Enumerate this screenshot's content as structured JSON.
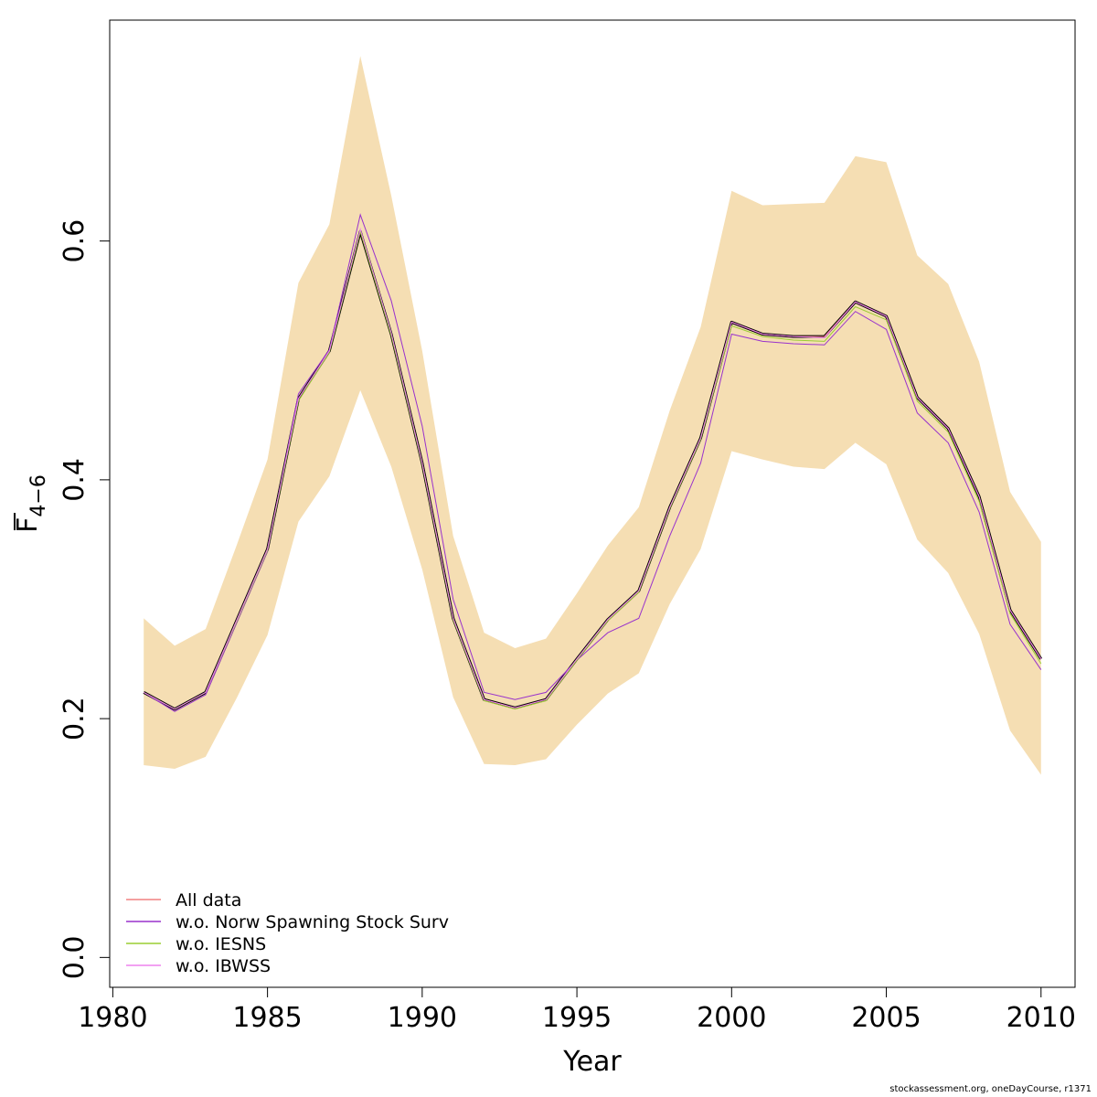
{
  "chart_data": {
    "type": "line",
    "xlabel": "Year",
    "ylabel": "F",
    "ylabel_subscript": "4−6",
    "x": [
      1981,
      1982,
      1983,
      1984,
      1985,
      1986,
      1987,
      1988,
      1989,
      1990,
      1991,
      1992,
      1993,
      1994,
      1995,
      1996,
      1997,
      1998,
      1999,
      2000,
      2001,
      2002,
      2003,
      2004,
      2005,
      2006,
      2007,
      2008,
      2009,
      2010
    ],
    "xlim": [
      1979.9,
      2011.1
    ],
    "ylim": [
      -0.025,
      0.785
    ],
    "xticks": [
      1980,
      1985,
      1990,
      1995,
      2000,
      2005,
      2010
    ],
    "xtick_labels": [
      "1980",
      "1985",
      "1990",
      "1995",
      "2000",
      "2005",
      "2010"
    ],
    "yticks": [
      0.0,
      0.2,
      0.4,
      0.6
    ],
    "ytick_labels": [
      "0.0",
      "0.2",
      "0.4",
      "0.6"
    ],
    "band": {
      "color": "#F5DEB3",
      "lower": [
        0.161,
        0.158,
        0.168,
        0.217,
        0.27,
        0.365,
        0.403,
        0.475,
        0.411,
        0.325,
        0.218,
        0.162,
        0.161,
        0.166,
        0.195,
        0.221,
        0.238,
        0.296,
        0.342,
        0.424,
        0.417,
        0.411,
        0.409,
        0.431,
        0.413,
        0.35,
        0.322,
        0.271,
        0.19,
        0.153
      ],
      "upper": [
        0.284,
        0.261,
        0.275,
        0.345,
        0.417,
        0.565,
        0.614,
        0.755,
        0.638,
        0.508,
        0.353,
        0.272,
        0.259,
        0.267,
        0.305,
        0.345,
        0.377,
        0.458,
        0.528,
        0.642,
        0.63,
        0.631,
        0.632,
        0.671,
        0.666,
        0.588,
        0.564,
        0.499,
        0.39,
        0.348
      ]
    },
    "main_line": {
      "color": "#000000",
      "values": [
        0.222,
        0.208,
        0.222,
        0.282,
        0.342,
        0.468,
        0.508,
        0.608,
        0.522,
        0.414,
        0.284,
        0.216,
        0.209,
        0.216,
        0.25,
        0.283,
        0.307,
        0.377,
        0.435,
        0.532,
        0.522,
        0.52,
        0.52,
        0.549,
        0.537,
        0.469,
        0.443,
        0.386,
        0.291,
        0.25
      ]
    },
    "series": [
      {
        "name": "All data",
        "color": "#F08080",
        "values": [
          0.222,
          0.208,
          0.222,
          0.282,
          0.342,
          0.468,
          0.508,
          0.608,
          0.522,
          0.414,
          0.284,
          0.216,
          0.209,
          0.216,
          0.25,
          0.283,
          0.307,
          0.377,
          0.435,
          0.532,
          0.522,
          0.52,
          0.52,
          0.549,
          0.537,
          0.469,
          0.443,
          0.386,
          0.291,
          0.25
        ]
      },
      {
        "name": "w.o. Norw Spawning Stock Surv",
        "color": "#9932CC",
        "values": [
          0.222,
          0.206,
          0.22,
          0.28,
          0.34,
          0.472,
          0.509,
          0.622,
          0.55,
          0.445,
          0.3,
          0.222,
          0.216,
          0.222,
          0.249,
          0.272,
          0.284,
          0.353,
          0.414,
          0.522,
          0.516,
          0.514,
          0.513,
          0.541,
          0.526,
          0.456,
          0.431,
          0.373,
          0.279,
          0.241
        ]
      },
      {
        "name": "w.o. IESNS",
        "color": "#9ACD32",
        "values": [
          0.222,
          0.208,
          0.222,
          0.281,
          0.341,
          0.466,
          0.507,
          0.608,
          0.521,
          0.413,
          0.283,
          0.215,
          0.208,
          0.215,
          0.249,
          0.282,
          0.306,
          0.376,
          0.434,
          0.529,
          0.52,
          0.517,
          0.516,
          0.545,
          0.534,
          0.466,
          0.44,
          0.382,
          0.288,
          0.246
        ]
      },
      {
        "name": "w.o. IBWSS",
        "color": "#EE82EE",
        "values": [
          0.222,
          0.208,
          0.222,
          0.282,
          0.342,
          0.468,
          0.508,
          0.61,
          0.523,
          0.414,
          0.284,
          0.216,
          0.209,
          0.216,
          0.25,
          0.283,
          0.307,
          0.377,
          0.435,
          0.532,
          0.522,
          0.52,
          0.519,
          0.549,
          0.537,
          0.469,
          0.443,
          0.386,
          0.291,
          0.25
        ]
      }
    ],
    "legend_position": "bottom-left",
    "grid": false
  },
  "footer_text": "stockassessment.org, oneDayCourse, r1371"
}
